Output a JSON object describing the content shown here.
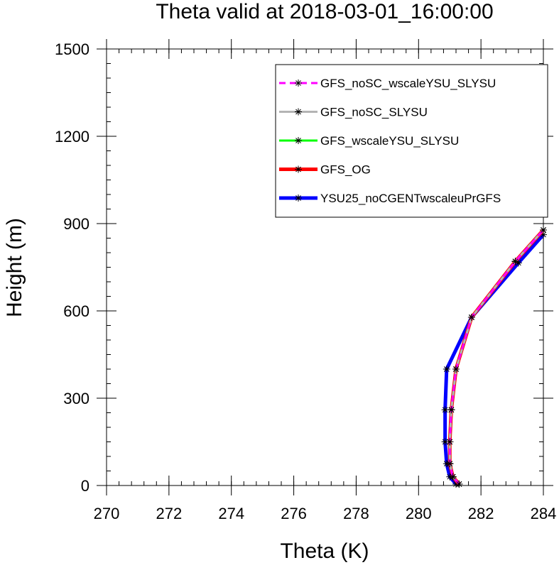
{
  "chart_data": {
    "type": "line",
    "title": "Theta valid at 2018-03-01_16:00:00",
    "xlabel": "Theta (K)",
    "ylabel": "Height (m)",
    "xlim": [
      270,
      284
    ],
    "ylim": [
      0,
      1500
    ],
    "xticks": [
      270,
      272,
      274,
      276,
      278,
      280,
      282,
      284
    ],
    "yticks": [
      0,
      300,
      600,
      900,
      1200,
      1500
    ],
    "xtick_labels": [
      "270",
      "272",
      "274",
      "276",
      "278",
      "280",
      "282",
      "284"
    ],
    "ytick_labels": [
      "0",
      "300",
      "600",
      "900",
      "1200",
      "1500"
    ],
    "grid": false,
    "legend_position": "top-right",
    "series": [
      {
        "name": "GFS_noSC_wscaleYSU_SLYSU",
        "color": "#ff00ff",
        "dash": "dashed",
        "marker": "asterisk",
        "points": [
          [
            281.3,
            5
          ],
          [
            281.1,
            30
          ],
          [
            281.0,
            75
          ],
          [
            281.0,
            150
          ],
          [
            281.05,
            260
          ],
          [
            281.2,
            400
          ],
          [
            281.7,
            578
          ],
          [
            283.1,
            770
          ],
          [
            284.0,
            878
          ]
        ]
      },
      {
        "name": "GFS_noSC_SLYSU",
        "color": "#b4b4b4",
        "dash": "solid",
        "marker": "asterisk",
        "points": [
          [
            281.3,
            5
          ],
          [
            281.1,
            30
          ],
          [
            281.0,
            75
          ],
          [
            281.0,
            150
          ],
          [
            281.05,
            260
          ],
          [
            281.2,
            400
          ],
          [
            281.7,
            578
          ],
          [
            283.1,
            770
          ],
          [
            284.0,
            878
          ]
        ]
      },
      {
        "name": "GFS_wscaleYSU_SLYSU",
        "color": "#00ff00",
        "dash": "solid",
        "marker": "asterisk",
        "points": [
          [
            281.3,
            5
          ],
          [
            281.1,
            30
          ],
          [
            281.0,
            75
          ],
          [
            281.0,
            150
          ],
          [
            281.05,
            260
          ],
          [
            281.2,
            400
          ],
          [
            281.7,
            578
          ],
          [
            283.1,
            770
          ],
          [
            284.0,
            878
          ]
        ]
      },
      {
        "name": "GFS_OG",
        "color": "#ff0000",
        "dash": "solid",
        "marker": "asterisk",
        "points": [
          [
            281.3,
            5
          ],
          [
            281.1,
            30
          ],
          [
            281.0,
            75
          ],
          [
            281.0,
            150
          ],
          [
            281.05,
            260
          ],
          [
            281.2,
            400
          ],
          [
            281.7,
            578
          ],
          [
            283.1,
            770
          ],
          [
            284.0,
            878
          ]
        ]
      },
      {
        "name": "YSU25_noCGENTwscaleuPrGFS",
        "color": "#0000ff",
        "dash": "solid",
        "marker": "asterisk",
        "points": [
          [
            281.2,
            5
          ],
          [
            281.0,
            30
          ],
          [
            280.9,
            75
          ],
          [
            280.85,
            150
          ],
          [
            280.85,
            260
          ],
          [
            280.9,
            400
          ],
          [
            281.7,
            578
          ],
          [
            283.2,
            765
          ],
          [
            284.0,
            862
          ]
        ]
      }
    ]
  }
}
